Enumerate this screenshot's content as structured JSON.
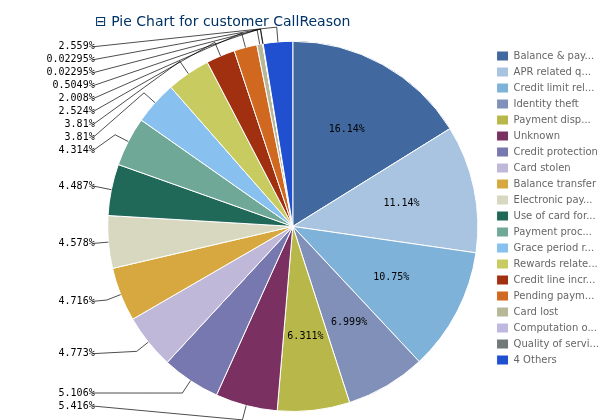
{
  "chart_data": {
    "type": "pie",
    "title": "⊟ Pie Chart for customer CallReason",
    "categories": [
      "Balance & pay...",
      "APR related q...",
      "Credit limit rel...",
      "Identity theft",
      "Payment disp...",
      "Unknown",
      "Credit protection",
      "Card stolen",
      "Balance transfer",
      "Electronic pay...",
      "Use of card for...",
      "Payment proc...",
      "Grace period r...",
      "Rewards relate...",
      "Credit line incr...",
      "Pending paym...",
      "Card lost",
      "Computation o...",
      "Quality of servi...",
      "4 Others"
    ],
    "values": [
      16.14,
      11.14,
      10.75,
      6.999,
      6.311,
      5.416,
      5.106,
      4.773,
      4.716,
      4.578,
      4.487,
      4.314,
      3.81,
      3.81,
      2.524,
      2.008,
      0.5049,
      0.02295,
      0.02295,
      2.559
    ],
    "value_labels": [
      "16.14%",
      "11.14%",
      "10.75%",
      "6.999%",
      "6.311%",
      "5.416%",
      "5.106%",
      "4.773%",
      "4.716%",
      "4.578%",
      "4.487%",
      "4.314%",
      "3.81%",
      "3.81%",
      "2.524%",
      "2.008%",
      "0.5049%",
      "0.02295%",
      "0.02295%",
      "2.559%"
    ],
    "colors": [
      "#4169a0",
      "#a8c4e0",
      "#7fb2d8",
      "#8090b8",
      "#b8b84a",
      "#7a3060",
      "#7878b0",
      "#c0b8d8",
      "#d8a840",
      "#d8d8c0",
      "#206858",
      "#70a898",
      "#88c0f0",
      "#c8cc60",
      "#a03010",
      "#d06820",
      "#b8b898",
      "#c0b8e0",
      "#707878",
      "#2050d0"
    ],
    "data_labels": true,
    "legend": "right"
  }
}
